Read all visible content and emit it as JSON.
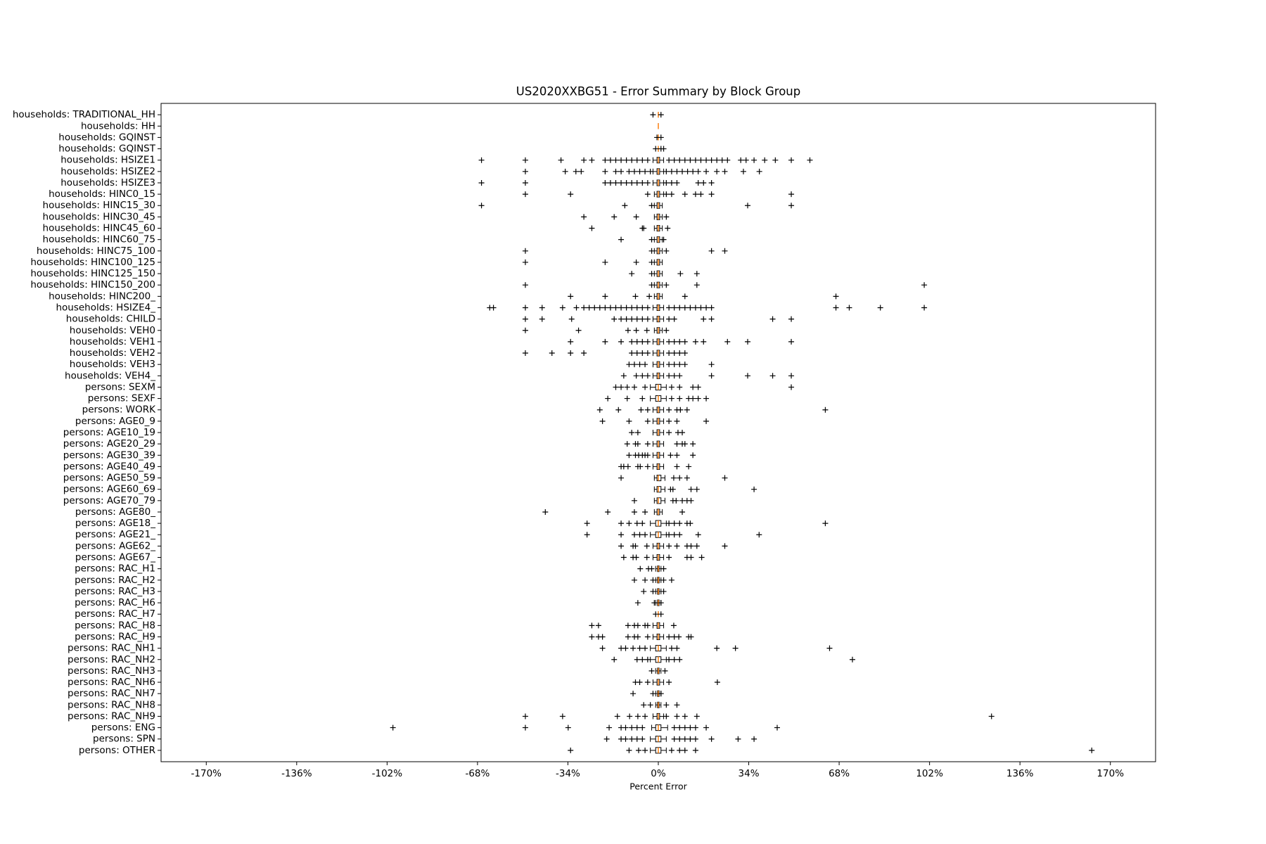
{
  "chart_data": {
    "type": "boxplot",
    "title": "US2020XXBG51 - Error Summary by Block Group",
    "xlabel": "Percent Error",
    "orientation": "horizontal",
    "color": "#000000",
    "median_color": "#ff7f0e",
    "xlim": [
      -187,
      187
    ],
    "xticks": [
      {
        "value": -170,
        "label": "-170%"
      },
      {
        "value": -136,
        "label": "-136%"
      },
      {
        "value": -102,
        "label": "-102%"
      },
      {
        "value": -68,
        "label": "-68%"
      },
      {
        "value": -34,
        "label": "-34%"
      },
      {
        "value": 0,
        "label": "0%"
      },
      {
        "value": 34,
        "label": "34%"
      },
      {
        "value": 68,
        "label": "68%"
      },
      {
        "value": 102,
        "label": "102%"
      },
      {
        "value": 136,
        "label": "136%"
      },
      {
        "value": 170,
        "label": "170%"
      }
    ],
    "grid": false,
    "categories": [
      "households: TRADITIONAL_HH",
      "households: HH",
      "households: GQINST",
      "households: GQINST",
      "households: HSIZE1",
      "households: HSIZE2",
      "households: HSIZE3",
      "households: HINC0_15",
      "households: HINC15_30",
      "households: HINC30_45",
      "households: HINC45_60",
      "households: HINC60_75",
      "households: HINC75_100",
      "households: HINC100_125",
      "households: HINC125_150",
      "households: HINC150_200",
      "households: HINC200_",
      "households: HSIZE4_",
      "households: CHILD",
      "households: VEH0",
      "households: VEH1",
      "households: VEH2",
      "households: VEH3",
      "households: VEH4_",
      "persons: SEXM",
      "persons: SEXF",
      "persons: WORK",
      "persons: AGE0_9",
      "persons: AGE10_19",
      "persons: AGE20_29",
      "persons: AGE30_39",
      "persons: AGE40_49",
      "persons: AGE50_59",
      "persons: AGE60_69",
      "persons: AGE70_79",
      "persons: AGE80_",
      "persons: AGE18_",
      "persons: AGE21_",
      "persons: AGE62_",
      "persons: AGE67_",
      "persons: RAC_H1",
      "persons: RAC_H2",
      "persons: RAC_H3",
      "persons: RAC_H6",
      "persons: RAC_H7",
      "persons: RAC_H8",
      "persons: RAC_H9",
      "persons: RAC_NH1",
      "persons: RAC_NH2",
      "persons: RAC_NH3",
      "persons: RAC_NH6",
      "persons: RAC_NH7",
      "persons: RAC_NH8",
      "persons: RAC_NH9",
      "persons: ENG",
      "persons: SPN",
      "persons: OTHER"
    ],
    "boxes": [
      {
        "whislo": 0,
        "q1": 0,
        "med": 0,
        "q3": 0,
        "whishi": 0,
        "fliers": [
          -2,
          1
        ]
      },
      {
        "whislo": 0,
        "q1": 0,
        "med": 0,
        "q3": 0,
        "whishi": 0,
        "fliers": []
      },
      {
        "whislo": 0,
        "q1": 0,
        "med": 0,
        "q3": 0,
        "whishi": 0,
        "fliers": [
          -0.5,
          1
        ]
      },
      {
        "whislo": 0,
        "q1": 0,
        "med": 0,
        "q3": 0,
        "whishi": 0,
        "fliers": [
          -1,
          1,
          2
        ]
      },
      {
        "whislo": -2,
        "q1": -0.5,
        "med": 0,
        "q3": 0.5,
        "whishi": 2,
        "fliers": [
          -66.5,
          -50,
          -36.6,
          -28,
          -25,
          -20,
          -18,
          -16,
          -14,
          -12,
          -10,
          -8,
          -6,
          -4,
          4,
          6,
          8,
          10,
          12,
          14,
          16,
          18,
          20,
          22,
          24,
          26,
          31,
          33,
          36,
          40,
          44,
          50,
          57
        ]
      },
      {
        "whislo": -2,
        "q1": -0.5,
        "med": 0,
        "q3": 0.5,
        "whishi": 2,
        "fliers": [
          -50,
          -35,
          -31,
          -29,
          -20,
          -16,
          -14,
          -11,
          -9,
          -7,
          -5,
          -3,
          3,
          5,
          7,
          9,
          11,
          13,
          15,
          18,
          22,
          25,
          32,
          38
        ]
      },
      {
        "whislo": -2,
        "q1": -0.5,
        "med": 0,
        "q3": 0.5,
        "whishi": 2,
        "fliers": [
          -66.5,
          -50,
          -20,
          -18,
          -16,
          -14,
          -12,
          -10,
          -8,
          -6,
          -4,
          3,
          5,
          7,
          15,
          17,
          20
        ]
      },
      {
        "whislo": -1.5,
        "q1": -0.5,
        "med": 0,
        "q3": 0.5,
        "whishi": 2,
        "fliers": [
          -50,
          -33,
          -4,
          3,
          5,
          10,
          14,
          16,
          20,
          50
        ]
      },
      {
        "whislo": -1.5,
        "q1": -0.5,
        "med": 0,
        "q3": 0.5,
        "whishi": 1.5,
        "fliers": [
          -66.5,
          -12.6,
          -2.5,
          33.6,
          50
        ]
      },
      {
        "whislo": -1.5,
        "q1": -0.5,
        "med": 0,
        "q3": 0.5,
        "whishi": 1.5,
        "fliers": [
          -28,
          -16.6,
          -8.3,
          3
        ]
      },
      {
        "whislo": -1.5,
        "q1": -0.5,
        "med": 0,
        "q3": 0.5,
        "whishi": 1.5,
        "fliers": [
          -25,
          -6,
          -5.5,
          3.5
        ]
      },
      {
        "whislo": -1.5,
        "q1": -0.5,
        "med": 0,
        "q3": 0.5,
        "whishi": 1.5,
        "fliers": [
          -14,
          -2.5,
          2
        ]
      },
      {
        "whislo": -1.5,
        "q1": -0.5,
        "med": 0,
        "q3": 0.5,
        "whishi": 1.5,
        "fliers": [
          -50,
          -2.5,
          3,
          20,
          25
        ]
      },
      {
        "whislo": -1.5,
        "q1": -0.5,
        "med": 0,
        "q3": 0.5,
        "whishi": 1.5,
        "fliers": [
          -50,
          -20,
          -8.3,
          -2.5
        ]
      },
      {
        "whislo": -1.5,
        "q1": -0.5,
        "med": 0,
        "q3": 0.5,
        "whishi": 1.5,
        "fliers": [
          -10,
          -2.5,
          8.3,
          14.5
        ]
      },
      {
        "whislo": -1.5,
        "q1": -0.5,
        "med": 0,
        "q3": 0.5,
        "whishi": 1.5,
        "fliers": [
          -50,
          -2.5,
          3,
          14.5,
          100
        ]
      },
      {
        "whislo": -1.5,
        "q1": -0.5,
        "med": 0,
        "q3": 0.5,
        "whishi": 1.5,
        "fliers": [
          -33,
          -20,
          -8.6,
          -3.4,
          10,
          66.8
        ]
      },
      {
        "whislo": -2,
        "q1": -0.5,
        "med": 0,
        "q3": 0.5,
        "whishi": 2,
        "fliers": [
          -63.4,
          -62,
          -50,
          -43.7,
          -36,
          -30.8,
          -28,
          -26,
          -24,
          -22,
          -20,
          -18,
          -16,
          -14,
          -12,
          -10,
          -8,
          -6,
          -4,
          4,
          6,
          8,
          10,
          12,
          14,
          16,
          18,
          20,
          66.8,
          71.8,
          83.5,
          100
        ]
      },
      {
        "whislo": -2,
        "q1": -0.5,
        "med": 0,
        "q3": 0.5,
        "whishi": 2,
        "fliers": [
          -50,
          -43.7,
          -32.6,
          -16.6,
          -14,
          -12,
          -10,
          -8,
          -6,
          -4,
          4,
          6,
          17,
          20,
          43,
          50
        ]
      },
      {
        "whislo": -1.5,
        "q1": -0.5,
        "med": 0,
        "q3": 0.5,
        "whishi": 1.5,
        "fliers": [
          -50,
          -30,
          -11.4,
          -8.3,
          -4.3,
          3
        ]
      },
      {
        "whislo": -2,
        "q1": -0.5,
        "med": 0,
        "q3": 0.5,
        "whishi": 2,
        "fliers": [
          -33,
          -20,
          -14,
          -10,
          -8,
          -6,
          -4,
          4,
          6,
          8,
          10,
          14,
          17,
          26,
          33.6,
          50
        ]
      },
      {
        "whislo": -2,
        "q1": -0.5,
        "med": 0,
        "q3": 0.5,
        "whishi": 2,
        "fliers": [
          -50,
          -40,
          -33,
          -28,
          -10,
          -8,
          -6,
          -4,
          4,
          6,
          8,
          10
        ]
      },
      {
        "whislo": -2,
        "q1": -0.5,
        "med": 0,
        "q3": 0.5,
        "whishi": 2,
        "fliers": [
          -11,
          -9,
          -7,
          -5,
          4,
          6,
          8,
          10,
          20
        ]
      },
      {
        "whislo": -2,
        "q1": -0.5,
        "med": 0,
        "q3": 0.5,
        "whishi": 2,
        "fliers": [
          -13,
          -8.3,
          -6,
          -4,
          4,
          6,
          8,
          20,
          33.6,
          43,
          50
        ]
      },
      {
        "whislo": -3,
        "q1": -1,
        "med": 0,
        "q3": 1,
        "whishi": 3,
        "fliers": [
          -16,
          -14,
          -11.7,
          -9,
          -5,
          5,
          8,
          13,
          15,
          50
        ]
      },
      {
        "whislo": -3,
        "q1": -1,
        "med": 0,
        "q3": 1,
        "whishi": 3,
        "fliers": [
          -19,
          -11.7,
          -6,
          5,
          8,
          11.4,
          13,
          15,
          18
        ]
      },
      {
        "whislo": -2,
        "q1": -0.5,
        "med": 0,
        "q3": 0.5,
        "whishi": 2,
        "fliers": [
          -22,
          -15,
          -6.5,
          -4,
          4,
          7,
          8.3,
          10.8,
          62.8
        ]
      },
      {
        "whislo": -2,
        "q1": -0.5,
        "med": 0,
        "q3": 0.5,
        "whishi": 2,
        "fliers": [
          -21,
          -11,
          -4,
          4,
          7,
          18
        ]
      },
      {
        "whislo": -2,
        "q1": -0.5,
        "med": 0,
        "q3": 0.5,
        "whishi": 2,
        "fliers": [
          -10,
          -7.7,
          4,
          7.4,
          9
        ]
      },
      {
        "whislo": -2,
        "q1": -0.5,
        "med": 0,
        "q3": 0.5,
        "whishi": 2,
        "fliers": [
          -11.7,
          -8.6,
          -7.7,
          -4,
          7,
          9,
          10,
          13
        ]
      },
      {
        "whislo": -2,
        "q1": -0.5,
        "med": 0,
        "q3": 0.5,
        "whishi": 2,
        "fliers": [
          -11,
          -8.6,
          -7.4,
          -6,
          -5,
          -4,
          4.6,
          7,
          13
        ]
      },
      {
        "whislo": -2,
        "q1": -0.5,
        "med": 0,
        "q3": 0.5,
        "whishi": 2,
        "fliers": [
          -14,
          -13,
          -11.4,
          -7.7,
          -6.8,
          -4,
          7,
          11.4
        ]
      },
      {
        "whislo": -1.5,
        "q1": -0.5,
        "med": 0,
        "q3": 1,
        "whishi": 2.5,
        "fliers": [
          -14,
          5.8,
          8,
          10.8,
          25
        ]
      },
      {
        "whislo": -1.5,
        "q1": -0.5,
        "med": 0,
        "q3": 1,
        "whishi": 2.5,
        "fliers": [
          4.6,
          5.5,
          12.3,
          14.5,
          36
        ]
      },
      {
        "whislo": -1.5,
        "q1": -0.5,
        "med": 0,
        "q3": 1,
        "whishi": 2.5,
        "fliers": [
          -9,
          5.5,
          6.7,
          9,
          10.8,
          12.3
        ]
      },
      {
        "whislo": -1.5,
        "q1": -0.5,
        "med": 0,
        "q3": 0.5,
        "whishi": 1.5,
        "fliers": [
          -42.5,
          -19,
          -9,
          -5,
          9
        ]
      },
      {
        "whislo": -3,
        "q1": -1,
        "med": 0,
        "q3": 1,
        "whishi": 3,
        "fliers": [
          -26.8,
          -14,
          -11,
          -8,
          -6,
          4,
          6,
          8,
          10.8,
          12,
          62.8
        ]
      },
      {
        "whislo": -3,
        "q1": -1,
        "med": 0,
        "q3": 1,
        "whishi": 3,
        "fliers": [
          -26.8,
          -14,
          -9,
          -7,
          -5,
          4,
          6,
          8,
          15,
          37.9
        ]
      },
      {
        "whislo": -2,
        "q1": -0.5,
        "med": 0,
        "q3": 0.5,
        "whishi": 2,
        "fliers": [
          -14,
          -9.5,
          -8.6,
          -4.3,
          4,
          7,
          10.8,
          12.3,
          14.5,
          25
        ]
      },
      {
        "whislo": -2,
        "q1": -0.5,
        "med": 0,
        "q3": 0.5,
        "whishi": 2,
        "fliers": [
          -13,
          -9.5,
          -8.3,
          -4.3,
          4,
          10.8,
          12.3,
          16.3
        ]
      },
      {
        "whislo": -1,
        "q1": -0.3,
        "med": 0,
        "q3": 0.3,
        "whishi": 1,
        "fliers": [
          -6.8,
          -3.7,
          -2.5,
          2
        ]
      },
      {
        "whislo": -1,
        "q1": -0.3,
        "med": 0,
        "q3": 0.3,
        "whishi": 1,
        "fliers": [
          -9,
          -5,
          -2,
          2,
          5
        ]
      },
      {
        "whislo": -1,
        "q1": -0.3,
        "med": 0,
        "q3": 0.3,
        "whishi": 1,
        "fliers": [
          -5.5,
          -2,
          2
        ]
      },
      {
        "whislo": -1,
        "q1": -0.3,
        "med": 0,
        "q3": 0.3,
        "whishi": 1,
        "fliers": [
          -7.7,
          -1.5,
          1
        ]
      },
      {
        "whislo": 0,
        "q1": 0,
        "med": 0,
        "q3": 0,
        "whishi": 0,
        "fliers": [
          -1,
          1
        ]
      },
      {
        "whislo": -2,
        "q1": -0.5,
        "med": 0,
        "q3": 0.5,
        "whishi": 2,
        "fliers": [
          -25,
          -22.5,
          -11.4,
          -9,
          -7.7,
          -5,
          -4,
          5.8
        ]
      },
      {
        "whislo": -2,
        "q1": -0.5,
        "med": 0,
        "q3": 0.5,
        "whishi": 2,
        "fliers": [
          -25,
          -22.5,
          -21,
          -11.4,
          -9,
          -7.7,
          -4,
          4,
          6,
          7.7,
          11.4,
          12.3
        ]
      },
      {
        "whislo": -3,
        "q1": -1,
        "med": 0,
        "q3": 1,
        "whishi": 3,
        "fliers": [
          -21,
          -14,
          -12.3,
          -9.5,
          -7,
          -5,
          5,
          7,
          22,
          29,
          64.4
        ]
      },
      {
        "whislo": -3,
        "q1": -1,
        "med": 0,
        "q3": 1,
        "whishi": 3,
        "fliers": [
          -16.6,
          -8,
          -6,
          -4,
          4,
          6,
          8,
          73
        ]
      },
      {
        "whislo": -1,
        "q1": -0.3,
        "med": 0,
        "q3": 0.3,
        "whishi": 1,
        "fliers": [
          -2.5,
          2.5
        ]
      },
      {
        "whislo": -2,
        "q1": -0.5,
        "med": 0,
        "q3": 0.5,
        "whishi": 2,
        "fliers": [
          -8.6,
          -7,
          -4,
          4,
          22.2
        ]
      },
      {
        "whislo": -1,
        "q1": -0.3,
        "med": 0,
        "q3": 0.3,
        "whishi": 1,
        "fliers": [
          -9.5,
          -2,
          1
        ]
      },
      {
        "whislo": -1,
        "q1": -0.3,
        "med": 0,
        "q3": 0.3,
        "whishi": 1,
        "fliers": [
          -5.5,
          -3,
          3,
          7
        ]
      },
      {
        "whislo": -2,
        "q1": -0.5,
        "med": 0,
        "q3": 0.5,
        "whishi": 2,
        "fliers": [
          -50,
          -36,
          -15.4,
          -10.8,
          -7.7,
          -5,
          3,
          7,
          10,
          14.5,
          125.3
        ]
      },
      {
        "whislo": -2.5,
        "q1": -1,
        "med": 0,
        "q3": 1,
        "whishi": 3.5,
        "fliers": [
          -99.8,
          -50,
          -33.9,
          -18.5,
          -14,
          -12.3,
          -10,
          -8,
          -6,
          6,
          8,
          10,
          12,
          14,
          18,
          44.7
        ]
      },
      {
        "whislo": -3,
        "q1": -1,
        "med": 0,
        "q3": 1,
        "whishi": 3,
        "fliers": [
          -19.4,
          -14,
          -12.3,
          -10,
          -8,
          -6,
          6,
          8,
          10,
          12,
          14,
          20,
          30,
          36
        ]
      },
      {
        "whislo": -3,
        "q1": -1,
        "med": 0,
        "q3": 1,
        "whishi": 3,
        "fliers": [
          -33,
          -11,
          -7.4,
          -5,
          5,
          8,
          10,
          14,
          163
        ]
      }
    ]
  }
}
